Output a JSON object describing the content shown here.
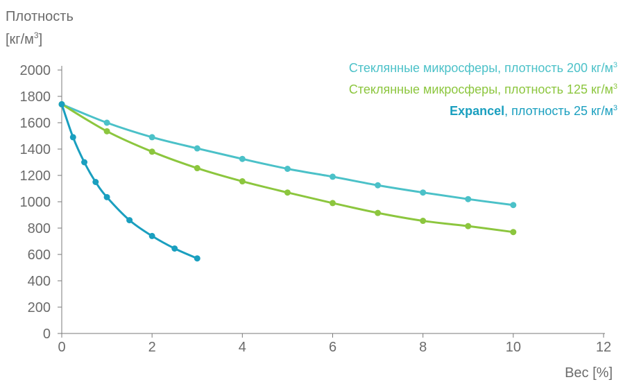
{
  "chart_data": {
    "type": "line",
    "ylabel_line1": "Плотность",
    "ylabel_line2": "[кг/м",
    "ylabel_sup": "3",
    "ylabel_end": "]",
    "xlabel": "Вес [%]",
    "xlim": [
      0,
      12
    ],
    "ylim": [
      0,
      2000
    ],
    "x_ticks": [
      "0",
      "2",
      "4",
      "6",
      "8",
      "10",
      "12"
    ],
    "y_ticks": [
      "0",
      "200",
      "400",
      "600",
      "800",
      "1000",
      "1200",
      "1400",
      "1600",
      "1800",
      "2000"
    ],
    "grid": false,
    "legend_position": "top-right",
    "series": [
      {
        "name": "Стеклянные микросферы, плотность 200 кг/м³",
        "legend_prefix": "",
        "legend_text": "Стеклянные микросферы, плотность 200 кг/м",
        "legend_sup": "3",
        "color": "#4bc1c8",
        "x": [
          0,
          1,
          2,
          3,
          4,
          5,
          6,
          7,
          8,
          9,
          10
        ],
        "y": [
          1740,
          1600,
          1490,
          1405,
          1325,
          1250,
          1190,
          1125,
          1070,
          1020,
          975
        ]
      },
      {
        "name": "Стеклянные микросферы, плотность 125 кг/м³",
        "legend_prefix": "",
        "legend_text": "Стеклянные микросферы, плотность 125 кг/м",
        "legend_sup": "3",
        "color": "#8cc63e",
        "x": [
          0,
          1,
          2,
          3,
          4,
          5,
          6,
          7,
          8,
          9,
          10
        ],
        "y": [
          1740,
          1535,
          1380,
          1255,
          1155,
          1070,
          990,
          915,
          855,
          815,
          770
        ]
      },
      {
        "name": "Expancel, плотность 25 кг/м³",
        "legend_prefix": "Expancel",
        "legend_text": ", плотность 25 кг/м",
        "legend_sup": "3",
        "color": "#1a9fbf",
        "x": [
          0,
          0.25,
          0.5,
          0.75,
          1,
          1.5,
          2,
          2.5,
          3
        ],
        "y": [
          1740,
          1490,
          1300,
          1150,
          1035,
          860,
          740,
          645,
          570
        ]
      }
    ]
  }
}
